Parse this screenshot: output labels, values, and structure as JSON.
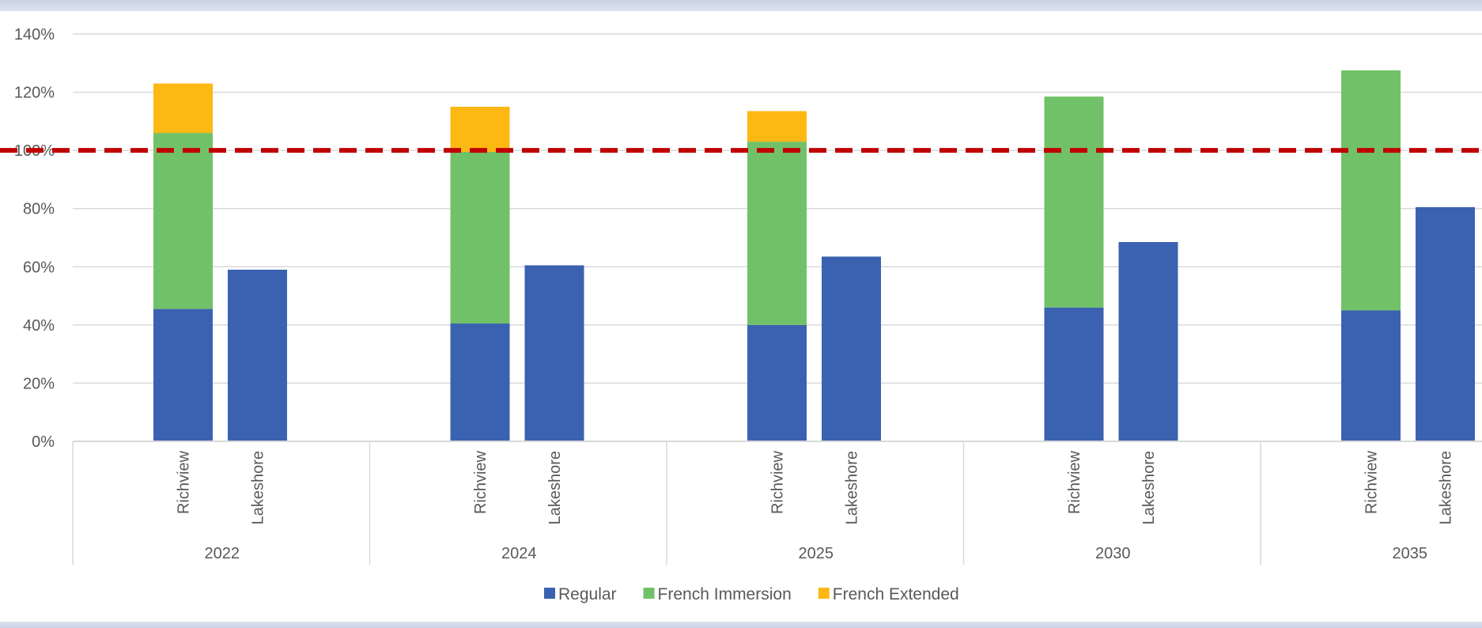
{
  "chart_data": {
    "type": "bar",
    "stacked": true,
    "groups": [
      {
        "label": "2022",
        "categories": [
          "Richview",
          "Lakeshore"
        ]
      },
      {
        "label": "2024",
        "categories": [
          "Richview",
          "Lakeshore"
        ]
      },
      {
        "label": "2025",
        "categories": [
          "Richview",
          "Lakeshore"
        ]
      },
      {
        "label": "2030",
        "categories": [
          "Richview",
          "Lakeshore"
        ]
      },
      {
        "label": "2035",
        "categories": [
          "Richview",
          "Lakeshore"
        ]
      }
    ],
    "series": [
      {
        "name": "Regular",
        "color": "#3b62b0",
        "values": [
          45.5,
          59.0,
          40.5,
          60.5,
          40.0,
          63.5,
          46.0,
          68.5,
          45.0,
          80.5
        ]
      },
      {
        "name": "French Immersion",
        "color": "#71c168",
        "values": [
          60.5,
          0,
          59.0,
          0,
          63.0,
          0,
          72.5,
          0,
          82.5,
          0
        ]
      },
      {
        "name": "French Extended",
        "color": "#fdb813",
        "values": [
          17.0,
          0,
          15.5,
          0,
          10.5,
          0,
          0,
          0,
          0,
          0
        ]
      }
    ],
    "reference_line": {
      "value": 100,
      "color": "#c00000",
      "style": "dashed"
    },
    "ylim": [
      0,
      140
    ],
    "yticks": [
      "0%",
      "20%",
      "40%",
      "60%",
      "80%",
      "100%",
      "120%",
      "140%"
    ],
    "grid": true,
    "legend_position": "bottom",
    "title": "",
    "xlabel": "",
    "ylabel": ""
  }
}
